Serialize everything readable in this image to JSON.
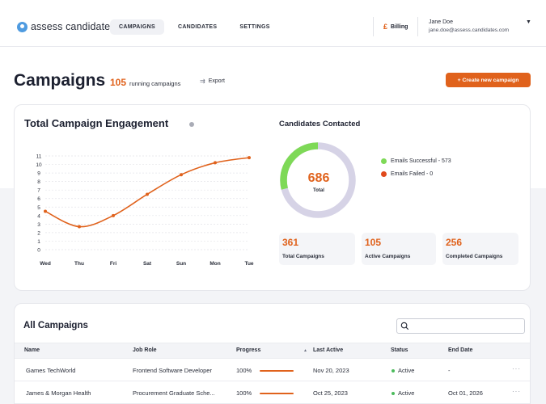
{
  "brand": {
    "name": "assess candidates"
  },
  "nav": {
    "tabs": [
      "CAMPAIGNS",
      "CANDIDATES",
      "SETTINGS"
    ],
    "active": "CAMPAIGNS"
  },
  "billing": {
    "label": "Billing"
  },
  "user": {
    "name": "Jane Doe",
    "email": "jane.doe@assess.candidates.com"
  },
  "page": {
    "title": "Campaigns",
    "running_count": "105",
    "running_label": "running campaigns",
    "export_label": "Export",
    "create_button": "+ Create new campaign"
  },
  "engagement": {
    "title": "Total Campaign Engagement"
  },
  "chart_data": {
    "type": "line",
    "title": "Total Campaign Engagement",
    "categories": [
      "Wed",
      "Thu",
      "Fri",
      "Sat",
      "Sun",
      "Mon",
      "Tue"
    ],
    "series": [
      {
        "values": [
          4.5,
          2.7,
          4.0,
          6.5,
          8.8,
          10.2,
          10.8
        ]
      }
    ],
    "y_ticks": [
      0,
      1,
      2,
      3,
      4,
      5,
      6,
      7,
      8,
      9,
      10,
      11
    ],
    "ylim": [
      0,
      11
    ],
    "grid": true,
    "color": "#e0621c"
  },
  "contacted": {
    "title": "Candidates Contacted",
    "total": "686",
    "total_label": "Total",
    "success_label": "Emails Successful - 573",
    "failed_label": "Emails Failed - 0",
    "success_fraction": 0.835,
    "colors": {
      "success": "#7ed957",
      "failed": "#e04a1c",
      "track": "#d6d3e6"
    }
  },
  "stats": [
    {
      "value": "361",
      "label": "Total Campaigns"
    },
    {
      "value": "105",
      "label": "Active Campaigns"
    },
    {
      "value": "256",
      "label": "Completed Campaigns"
    }
  ],
  "campaigns": {
    "title": "All Campaigns",
    "search_placeholder": "",
    "columns": [
      "Name",
      "Job Role",
      "Progress",
      "Last Active",
      "Status",
      "End Date"
    ],
    "rows": [
      {
        "name": "Games TechWorld",
        "role": "Frontend Software Developer",
        "progress": "100%",
        "progress_value": 1.0,
        "last_active": "Nov 20, 2023",
        "status": "Active",
        "end_date": "-",
        "more": "···"
      },
      {
        "name": "James & Morgan Health",
        "role": "Procurement Graduate Sche...",
        "progress": "100%",
        "progress_value": 1.0,
        "last_active": "Oct 25, 2023",
        "status": "Active",
        "end_date": "Oct 01, 2026",
        "more": "···"
      }
    ]
  }
}
